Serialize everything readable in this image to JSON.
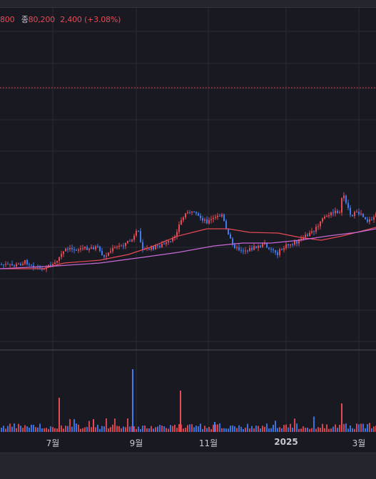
{
  "legend": {
    "prev_value": "800",
    "close_label": "종",
    "close_value": "80,200",
    "change": "2,400",
    "change_pct": "(+3.08%)"
  },
  "chart_data": {
    "type": "candlestick",
    "x_ticks": [
      "7월",
      "9월",
      "11월",
      "2025",
      "3월"
    ],
    "series": [
      {
        "type": "ma-short",
        "color": "#e64a55"
      },
      {
        "type": "ma-long",
        "color": "#c86ad8"
      }
    ],
    "price_level_line": "dotted",
    "volume_pane": true,
    "up_color": "#e64a55",
    "down_color": "#3f7cf0"
  },
  "colors": {
    "up": "#e64a55",
    "down": "#3f7cf0",
    "background": "#191921",
    "grid": "#2a2b33"
  }
}
